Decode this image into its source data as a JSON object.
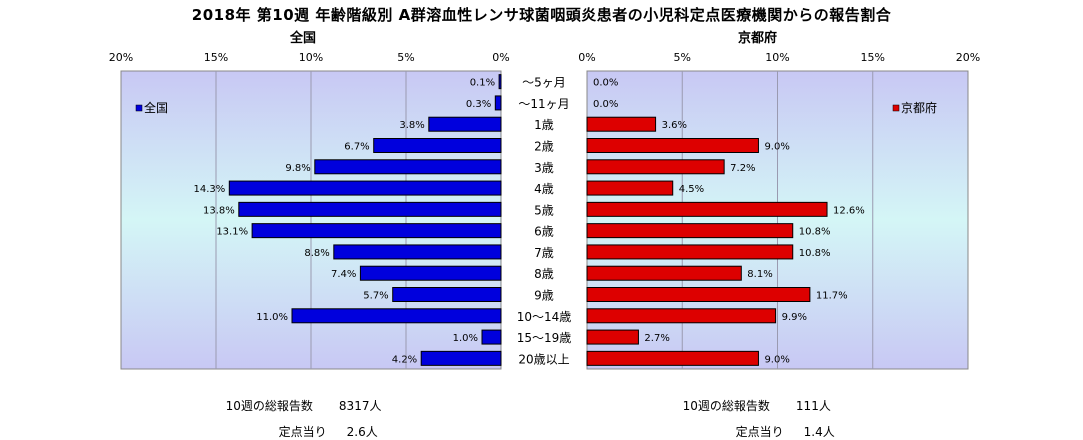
{
  "title": "2018年 第10週 年齢階級別 A群溶血性レンサ球菌咽頭炎患者の小児科定点医療機関からの報告割合",
  "panels": {
    "left_label": "全国",
    "right_label": "京都府"
  },
  "colors": {
    "left_bar": "#0000dd",
    "right_bar": "#dd0000",
    "plot_bg_top": "#c8c8f4",
    "plot_bg_mid": "#d4f4f4"
  },
  "footer": {
    "left": {
      "total_label": "10週の総報告数",
      "total_value": "8317人",
      "per_label": "定点当り",
      "per_value": "2.6人"
    },
    "right": {
      "total_label": "10週の総報告数",
      "total_value": "111人",
      "per_label": "定点当り",
      "per_value": "1.4人"
    }
  },
  "chart_data": {
    "type": "bar",
    "orientation": "horizontal-butterfly",
    "categories": [
      "～5ヶ月",
      "～11ヶ月",
      "1歳",
      "2歳",
      "3歳",
      "4歳",
      "5歳",
      "6歳",
      "7歳",
      "8歳",
      "9歳",
      "10～14歳",
      "15～19歳",
      "20歳以上"
    ],
    "x_ticks": [
      "0%",
      "5%",
      "10%",
      "15%",
      "20%"
    ],
    "xlim": [
      0,
      20
    ],
    "unit": "%",
    "series": [
      {
        "name": "全国",
        "side": "left",
        "color": "#0000dd",
        "values": [
          0.1,
          0.3,
          3.8,
          6.7,
          9.8,
          14.3,
          13.8,
          13.1,
          8.8,
          7.4,
          5.7,
          11.0,
          1.0,
          4.2
        ],
        "labels": [
          "0.1%",
          "0.3%",
          "3.8%",
          "6.7%",
          "9.8%",
          "14.3%",
          "13.8%",
          "13.1%",
          "8.8%",
          "7.4%",
          "5.7%",
          "11.0%",
          "1.0%",
          "4.2%"
        ]
      },
      {
        "name": "京都府",
        "side": "right",
        "color": "#dd0000",
        "values": [
          0.0,
          0.0,
          3.6,
          9.0,
          7.2,
          4.5,
          12.6,
          10.8,
          10.8,
          8.1,
          11.7,
          9.9,
          2.7,
          9.0
        ],
        "labels": [
          "0.0%",
          "0.0%",
          "3.6%",
          "9.0%",
          "7.2%",
          "4.5%",
          "12.6%",
          "10.8%",
          "10.8%",
          "8.1%",
          "11.7%",
          "9.9%",
          "2.7%",
          "9.0%"
        ]
      }
    ],
    "legend": {
      "left": "top-left",
      "right": "top-right"
    },
    "grid": true
  }
}
